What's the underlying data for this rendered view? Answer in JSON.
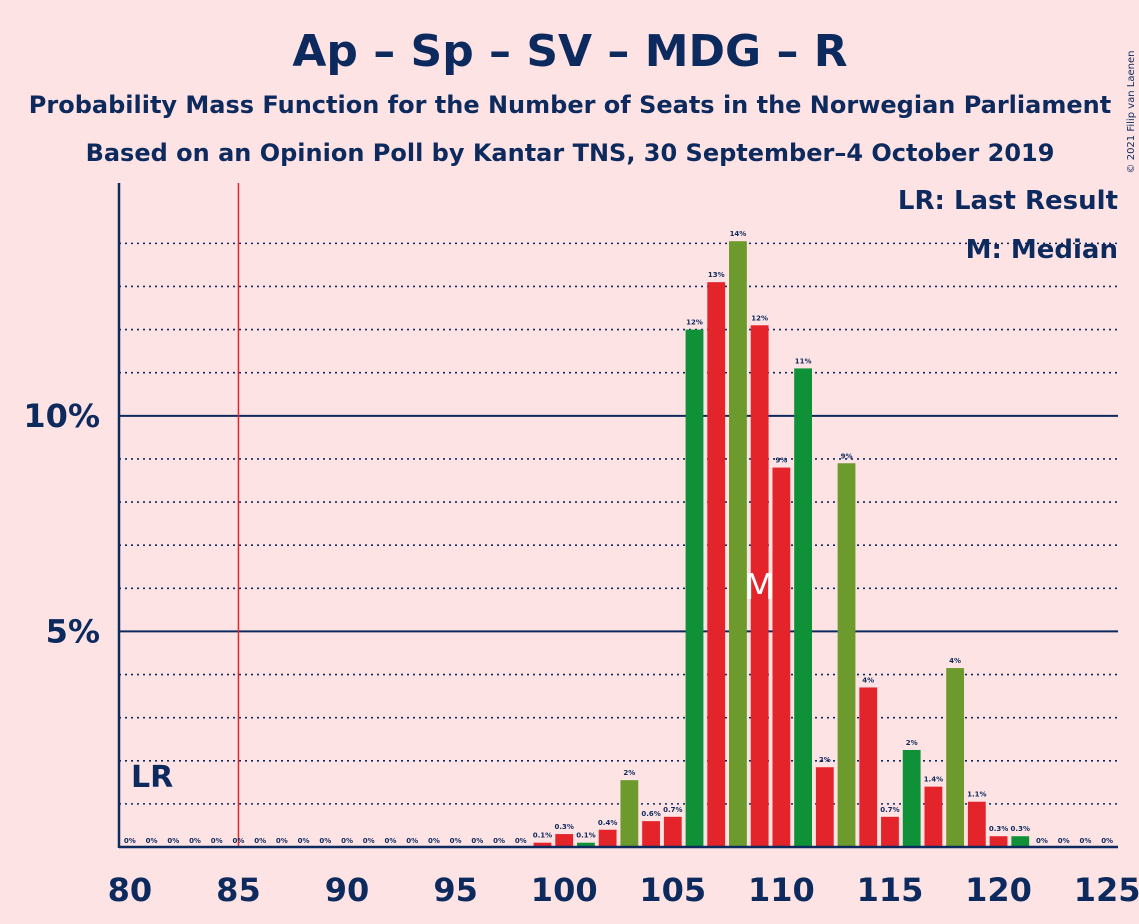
{
  "colors": {
    "background": "#fde3e3",
    "axis": "#0d2a5e",
    "red": "#e3252b",
    "green": "#0f9138",
    "olive": "#6d9a2c",
    "last_result_line": "#e3252b"
  },
  "copyright": "© 2021 Filip van Laenen",
  "chart_data": {
    "type": "bar",
    "title": "Ap – Sp – SV – MDG – R",
    "subtitle": "Probability Mass Function for the Number of Seats in the Norwegian Parliament",
    "subtitle2": "Based on an Opinion Poll by Kantar TNS, 30 September–4 October 2019",
    "xlim": [
      79.5,
      125.5
    ],
    "ylim": [
      0,
      15.4
    ],
    "x_ticks": [
      "80",
      "85",
      "90",
      "95",
      "100",
      "105",
      "110",
      "115",
      "120",
      "125"
    ],
    "y_ticks": [
      {
        "value": 5,
        "label": "5%"
      },
      {
        "value": 10,
        "label": "10%"
      }
    ],
    "legend": {
      "placement": "top-right",
      "lr": "LR: Last Result",
      "m": "M: Median"
    },
    "last_result": {
      "x": 85,
      "label": "LR"
    },
    "median": {
      "x": 109,
      "label": "M"
    },
    "bars": [
      {
        "x": 80,
        "value": 0,
        "label": "0%",
        "color": "red"
      },
      {
        "x": 81,
        "value": 0,
        "label": "0%",
        "color": "red"
      },
      {
        "x": 82,
        "value": 0,
        "label": "0%",
        "color": "red"
      },
      {
        "x": 83,
        "value": 0,
        "label": "0%",
        "color": "red"
      },
      {
        "x": 84,
        "value": 0,
        "label": "0%",
        "color": "red"
      },
      {
        "x": 85,
        "value": 0,
        "label": "0%",
        "color": "red"
      },
      {
        "x": 86,
        "value": 0,
        "label": "0%",
        "color": "red"
      },
      {
        "x": 87,
        "value": 0,
        "label": "0%",
        "color": "red"
      },
      {
        "x": 88,
        "value": 0,
        "label": "0%",
        "color": "red"
      },
      {
        "x": 89,
        "value": 0,
        "label": "0%",
        "color": "red"
      },
      {
        "x": 90,
        "value": 0,
        "label": "0%",
        "color": "red"
      },
      {
        "x": 91,
        "value": 0,
        "label": "0%",
        "color": "red"
      },
      {
        "x": 92,
        "value": 0,
        "label": "0%",
        "color": "red"
      },
      {
        "x": 93,
        "value": 0,
        "label": "0%",
        "color": "red"
      },
      {
        "x": 94,
        "value": 0,
        "label": "0%",
        "color": "red"
      },
      {
        "x": 95,
        "value": 0,
        "label": "0%",
        "color": "red"
      },
      {
        "x": 96,
        "value": 0,
        "label": "0%",
        "color": "red"
      },
      {
        "x": 97,
        "value": 0,
        "label": "0%",
        "color": "red"
      },
      {
        "x": 98,
        "value": 0,
        "label": "0%",
        "color": "red"
      },
      {
        "x": 99,
        "value": 0.1,
        "label": "0.1%",
        "color": "red"
      },
      {
        "x": 100,
        "value": 0.3,
        "label": "0.3%",
        "color": "red"
      },
      {
        "x": 101,
        "value": 0.1,
        "label": "0.1%",
        "color": "green"
      },
      {
        "x": 102,
        "value": 0.4,
        "label": "0.4%",
        "color": "red"
      },
      {
        "x": 103,
        "value": 1.55,
        "label": "2%",
        "color": "olive"
      },
      {
        "x": 104,
        "value": 0.6,
        "label": "0.6%",
        "color": "red"
      },
      {
        "x": 105,
        "value": 0.7,
        "label": "0.7%",
        "color": "red"
      },
      {
        "x": 106,
        "value": 12.0,
        "label": "12%",
        "color": "green"
      },
      {
        "x": 107,
        "value": 13.1,
        "label": "13%",
        "color": "red"
      },
      {
        "x": 108,
        "value": 14.05,
        "label": "14%",
        "color": "olive"
      },
      {
        "x": 109,
        "value": 12.1,
        "label": "12%",
        "color": "red"
      },
      {
        "x": 110,
        "value": 8.8,
        "label": "9%",
        "color": "red"
      },
      {
        "x": 111,
        "value": 11.1,
        "label": "11%",
        "color": "green"
      },
      {
        "x": 112,
        "value": 1.85,
        "label": "2%",
        "color": "red"
      },
      {
        "x": 113,
        "value": 8.9,
        "label": "9%",
        "color": "olive"
      },
      {
        "x": 114,
        "value": 3.7,
        "label": "4%",
        "color": "red"
      },
      {
        "x": 115,
        "value": 0.7,
        "label": "0.7%",
        "color": "red"
      },
      {
        "x": 116,
        "value": 2.25,
        "label": "2%",
        "color": "green"
      },
      {
        "x": 117,
        "value": 1.4,
        "label": "1.4%",
        "color": "red"
      },
      {
        "x": 118,
        "value": 4.15,
        "label": "4%",
        "color": "olive"
      },
      {
        "x": 119,
        "value": 1.05,
        "label": "1.1%",
        "color": "red"
      },
      {
        "x": 120,
        "value": 0.25,
        "label": "0.3%",
        "color": "red"
      },
      {
        "x": 121,
        "value": 0.25,
        "label": "0.3%",
        "color": "green"
      },
      {
        "x": 122,
        "value": 0,
        "label": "0%",
        "color": "red"
      },
      {
        "x": 123,
        "value": 0,
        "label": "0%",
        "color": "red"
      },
      {
        "x": 124,
        "value": 0,
        "label": "0%",
        "color": "red"
      },
      {
        "x": 125,
        "value": 0,
        "label": "0%",
        "color": "red"
      }
    ]
  }
}
